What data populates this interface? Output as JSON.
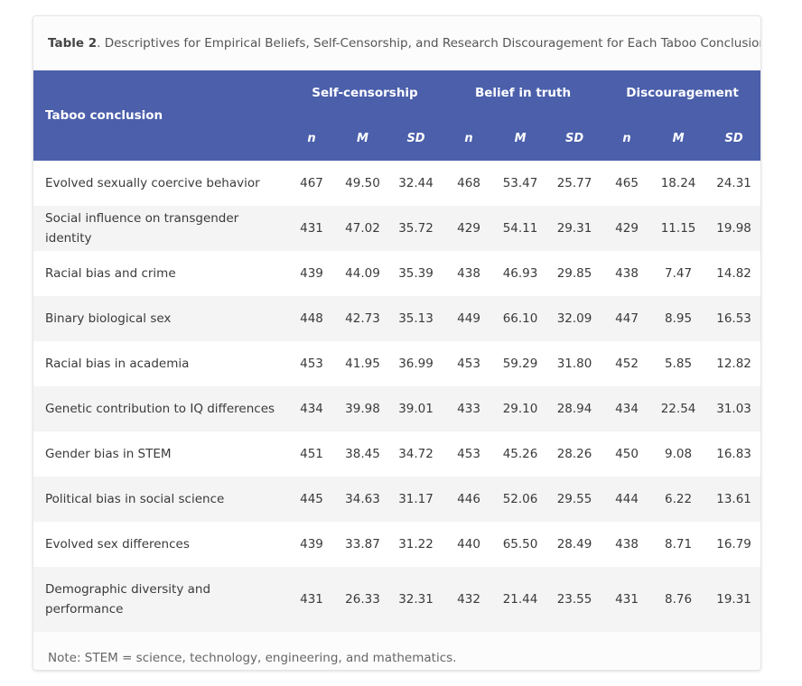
{
  "caption": {
    "label": "Table 2",
    "text": ". Descriptives for Empirical Beliefs, Self-Censorship, and Research Discouragement for Each Taboo Conclusion"
  },
  "header": {
    "row_label": "Taboo conclusion",
    "groups": [
      "Self-censorship",
      "Belief in truth",
      "Discouragement"
    ],
    "sub": [
      "n",
      "M",
      "SD"
    ]
  },
  "rows": [
    {
      "label": "Evolved sexually coercive behavior",
      "values": [
        "467",
        "49.50",
        "32.44",
        "468",
        "53.47",
        "25.77",
        "465",
        "18.24",
        "24.31"
      ]
    },
    {
      "label": "Social influence on transgender identity",
      "values": [
        "431",
        "47.02",
        "35.72",
        "429",
        "54.11",
        "29.31",
        "429",
        "11.15",
        "19.98"
      ]
    },
    {
      "label": "Racial bias and crime",
      "values": [
        "439",
        "44.09",
        "35.39",
        "438",
        "46.93",
        "29.85",
        "438",
        "7.47",
        "14.82"
      ]
    },
    {
      "label": "Binary biological sex",
      "values": [
        "448",
        "42.73",
        "35.13",
        "449",
        "66.10",
        "32.09",
        "447",
        "8.95",
        "16.53"
      ]
    },
    {
      "label": "Racial bias in academia",
      "values": [
        "453",
        "41.95",
        "36.99",
        "453",
        "59.29",
        "31.80",
        "452",
        "5.85",
        "12.82"
      ]
    },
    {
      "label": "Genetic contribution to IQ differences",
      "values": [
        "434",
        "39.98",
        "39.01",
        "433",
        "29.10",
        "28.94",
        "434",
        "22.54",
        "31.03"
      ]
    },
    {
      "label": "Gender bias in STEM",
      "values": [
        "451",
        "38.45",
        "34.72",
        "453",
        "45.26",
        "28.26",
        "450",
        "9.08",
        "16.83"
      ]
    },
    {
      "label": "Political bias in social science",
      "values": [
        "445",
        "34.63",
        "31.17",
        "446",
        "52.06",
        "29.55",
        "444",
        "6.22",
        "13.61"
      ]
    },
    {
      "label": "Evolved sex differences",
      "values": [
        "439",
        "33.87",
        "31.22",
        "440",
        "65.50",
        "28.49",
        "438",
        "8.71",
        "16.79"
      ]
    },
    {
      "label": "Demographic diversity and performance",
      "values": [
        "431",
        "26.33",
        "32.31",
        "432",
        "21.44",
        "23.55",
        "431",
        "8.76",
        "19.31"
      ]
    }
  ],
  "note": "Note: STEM = science, technology, engineering, and mathematics."
}
